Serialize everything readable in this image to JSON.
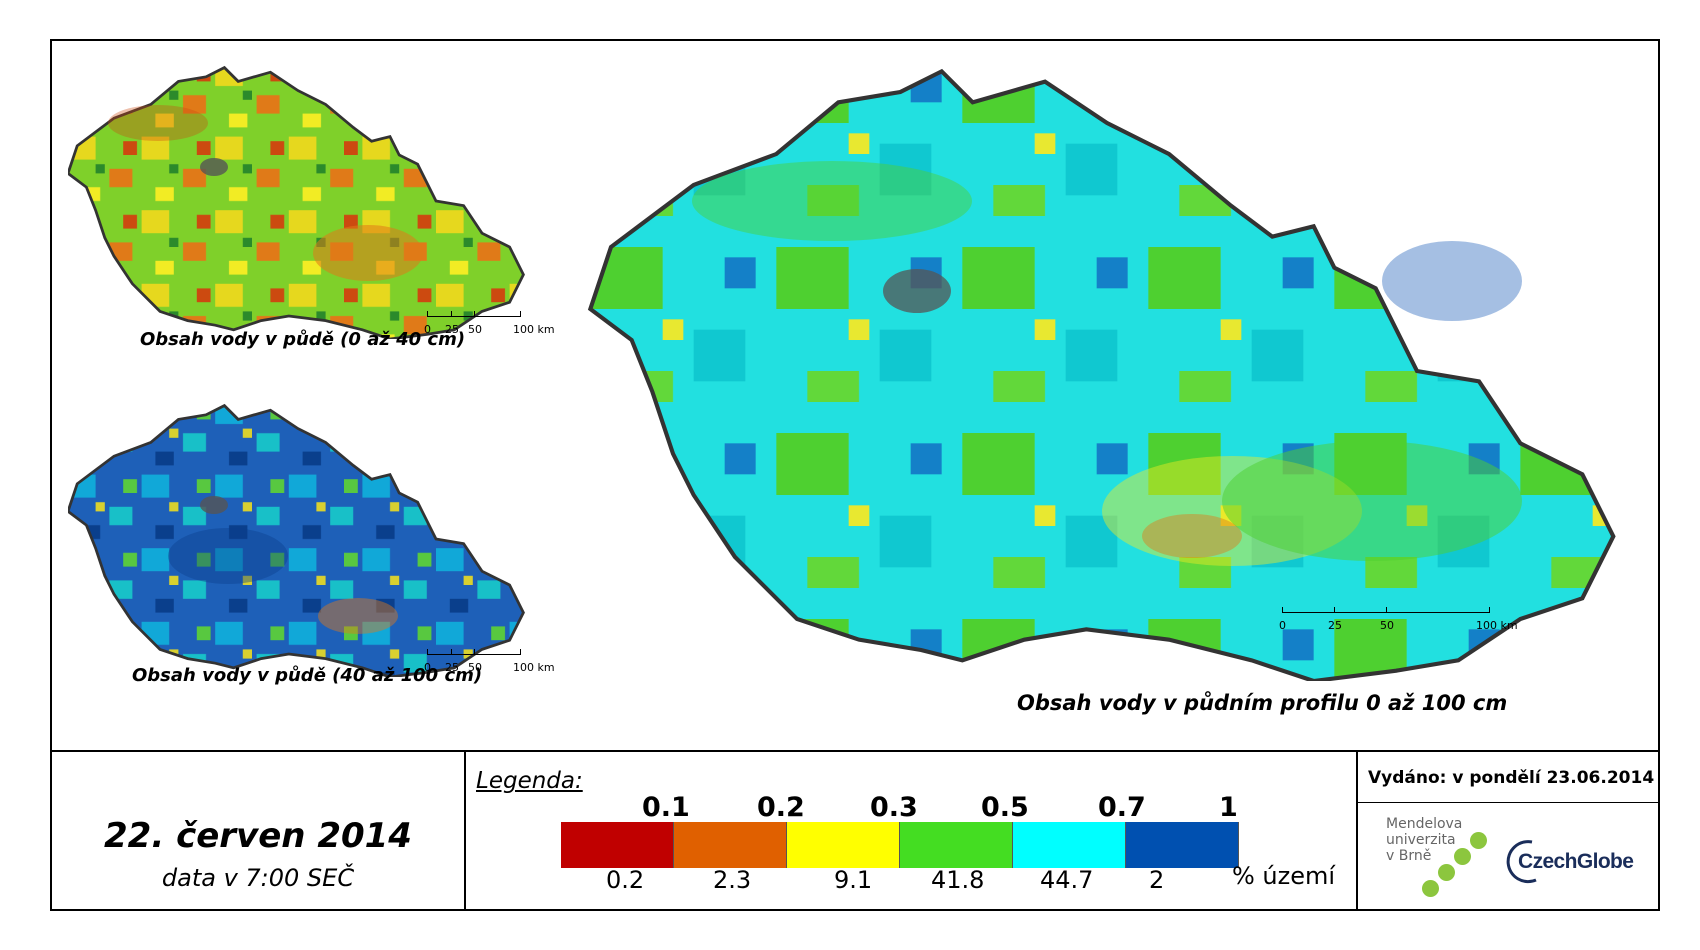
{
  "maps": {
    "small_top_caption": "Obsah vody v půdě (0 až 40 cm)",
    "small_bottom_caption": "Obsah vody v půdě (40 až 100 cm)",
    "main_caption": "Obsah vody v půdním profilu 0 až 100 cm"
  },
  "scalebar": {
    "ticks": [
      "0",
      "25",
      "50",
      "100 km"
    ]
  },
  "date": {
    "title": "22. červen 2014",
    "subtitle": "data v 7:00 SEČ"
  },
  "legend": {
    "label": "Legenda:",
    "thresholds": [
      "0.1",
      "0.2",
      "0.3",
      "0.5",
      "0.7",
      "1"
    ],
    "percentages": [
      "0.2",
      "2.3",
      "9.1",
      "41.8",
      "44.7",
      "2"
    ],
    "unit": "% území",
    "colors": [
      "#c00000",
      "#e06000",
      "#ffff00",
      "#44dd22",
      "#00ffff",
      "#0050b0"
    ]
  },
  "issued": {
    "text": "Vydáno: v pondělí 23.06.2014"
  },
  "logos": {
    "mendel_line1": "Mendelova",
    "mendel_line2": "univerzita",
    "mendel_line3": "v Brně",
    "czechglobe": "CzechGlobe"
  }
}
